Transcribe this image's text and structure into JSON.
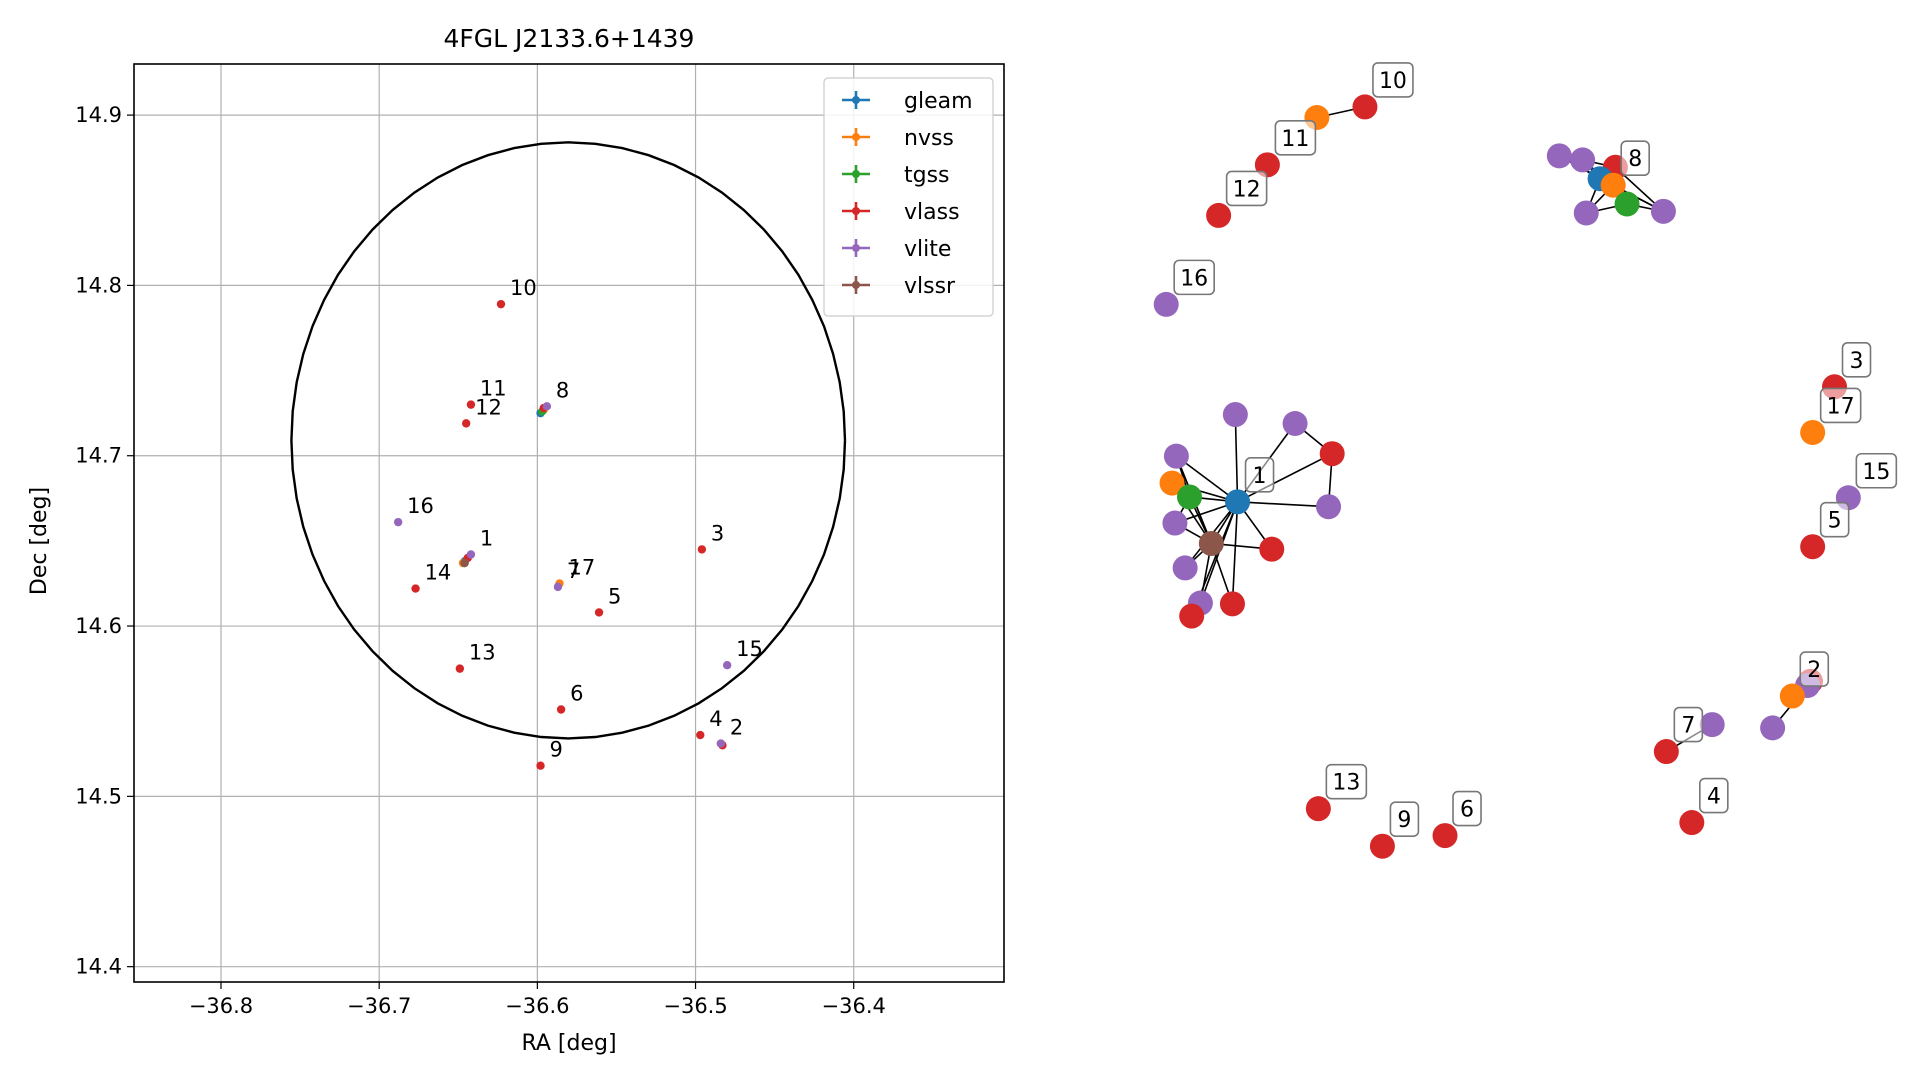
{
  "chart_data": [
    {
      "type": "scatter",
      "title": "4FGL J2133.6+1439",
      "xlabel": "RA [deg]",
      "ylabel": "Dec [deg]",
      "xlim": [
        -36.855,
        -36.305
      ],
      "ylim": [
        14.391,
        14.93
      ],
      "xticks": [
        -36.8,
        -36.7,
        -36.6,
        -36.5,
        -36.4
      ],
      "xtick_labels": [
        "−36.8",
        "−36.7",
        "−36.6",
        "−36.5",
        "−36.4"
      ],
      "yticks": [
        14.4,
        14.5,
        14.6,
        14.7,
        14.8,
        14.9
      ],
      "ytick_labels": [
        "14.4",
        "14.5",
        "14.6",
        "14.7",
        "14.8",
        "14.9"
      ],
      "grid": true,
      "legend_position": "upper right",
      "circle": {
        "center": [
          -36.5805,
          14.709
        ],
        "radius": 0.175
      },
      "series": [
        {
          "name": "gleam",
          "color": "#1f77b4",
          "points": [
            {
              "x": -36.646,
              "y": 14.638
            },
            {
              "x": -36.598,
              "y": 14.725
            }
          ]
        },
        {
          "name": "nvss",
          "color": "#ff7f0e",
          "points": [
            {
              "x": -36.647,
              "y": 14.637
            },
            {
              "x": -36.596,
              "y": 14.727
            },
            {
              "x": -36.484,
              "y": 14.531
            },
            {
              "x": -36.586,
              "y": 14.625
            }
          ]
        },
        {
          "name": "tgss",
          "color": "#2ca02c",
          "points": [
            {
              "x": -36.646,
              "y": 14.637
            },
            {
              "x": -36.597,
              "y": 14.726
            }
          ]
        },
        {
          "name": "vlass",
          "color": "#d62728",
          "points": [
            {
              "x": -36.644,
              "y": 14.64
            },
            {
              "x": -36.596,
              "y": 14.728
            },
            {
              "x": -36.496,
              "y": 14.645
            },
            {
              "x": -36.497,
              "y": 14.536
            },
            {
              "x": -36.561,
              "y": 14.608
            },
            {
              "x": -36.585,
              "y": 14.551
            },
            {
              "x": -36.598,
              "y": 14.518
            },
            {
              "x": -36.623,
              "y": 14.789
            },
            {
              "x": -36.642,
              "y": 14.73
            },
            {
              "x": -36.645,
              "y": 14.719
            },
            {
              "x": -36.649,
              "y": 14.575
            },
            {
              "x": -36.677,
              "y": 14.622
            },
            {
              "x": -36.483,
              "y": 14.53
            }
          ]
        },
        {
          "name": "vlite",
          "color": "#9467bd",
          "points": [
            {
              "x": -36.642,
              "y": 14.642
            },
            {
              "x": -36.594,
              "y": 14.729
            },
            {
              "x": -36.484,
              "y": 14.531
            },
            {
              "x": -36.48,
              "y": 14.577
            },
            {
              "x": -36.688,
              "y": 14.661
            },
            {
              "x": -36.587,
              "y": 14.623
            }
          ]
        },
        {
          "name": "vlssr",
          "color": "#8c564b",
          "points": [
            {
              "x": -36.646,
              "y": 14.637
            }
          ]
        }
      ],
      "annotations": [
        {
          "text": "1",
          "x": -36.642,
          "y": 14.642
        },
        {
          "text": "2",
          "x": -36.484,
          "y": 14.531
        },
        {
          "text": "3",
          "x": -36.496,
          "y": 14.645
        },
        {
          "text": "4",
          "x": -36.497,
          "y": 14.536
        },
        {
          "text": "5",
          "x": -36.561,
          "y": 14.608
        },
        {
          "text": "6",
          "x": -36.585,
          "y": 14.551
        },
        {
          "text": "7",
          "x": -36.587,
          "y": 14.623
        },
        {
          "text": "8",
          "x": -36.594,
          "y": 14.729
        },
        {
          "text": "9",
          "x": -36.598,
          "y": 14.518
        },
        {
          "text": "10",
          "x": -36.623,
          "y": 14.789
        },
        {
          "text": "11",
          "x": -36.642,
          "y": 14.73
        },
        {
          "text": "12",
          "x": -36.645,
          "y": 14.719
        },
        {
          "text": "13",
          "x": -36.649,
          "y": 14.575
        },
        {
          "text": "14",
          "x": -36.677,
          "y": 14.622
        },
        {
          "text": "15",
          "x": -36.48,
          "y": 14.577
        },
        {
          "text": "16",
          "x": -36.688,
          "y": 14.661
        },
        {
          "text": "17",
          "x": -36.586,
          "y": 14.625
        }
      ]
    },
    {
      "type": "network",
      "axes": "off",
      "nodes": [
        {
          "id": "a1",
          "color": "#9467bd",
          "x": 0.12,
          "y": 0.617
        },
        {
          "id": "a2",
          "color": "#9467bd",
          "x": 0.202,
          "y": 0.606
        },
        {
          "id": "a3",
          "color": "#d62728",
          "x": 0.253,
          "y": 0.569
        },
        {
          "id": "a4",
          "color": "#9467bd",
          "x": 0.039,
          "y": 0.566
        },
        {
          "id": "a5",
          "color": "#ff7f0e",
          "x": 0.033,
          "y": 0.533
        },
        {
          "id": "a6",
          "color": "#2ca02c",
          "x": 0.057,
          "y": 0.516
        },
        {
          "id": "a7",
          "color": "#1f77b4",
          "x": 0.123,
          "y": 0.51,
          "label": "1"
        },
        {
          "id": "a8",
          "color": "#9467bd",
          "x": 0.248,
          "y": 0.504
        },
        {
          "id": "a9",
          "color": "#9467bd",
          "x": 0.037,
          "y": 0.484
        },
        {
          "id": "a10",
          "color": "#8c564b",
          "x": 0.087,
          "y": 0.459
        },
        {
          "id": "a11",
          "color": "#d62728",
          "x": 0.17,
          "y": 0.452
        },
        {
          "id": "a12",
          "color": "#9467bd",
          "x": 0.051,
          "y": 0.429
        },
        {
          "id": "a13",
          "color": "#d62728",
          "x": 0.116,
          "y": 0.385
        },
        {
          "id": "a14",
          "color": "#9467bd",
          "x": 0.072,
          "y": 0.386
        },
        {
          "id": "a15",
          "color": "#d62728",
          "x": 0.06,
          "y": 0.37
        },
        {
          "id": "b1",
          "color": "#9467bd",
          "x": 0.565,
          "y": 0.934
        },
        {
          "id": "b2",
          "color": "#9467bd",
          "x": 0.597,
          "y": 0.929
        },
        {
          "id": "b3",
          "color": "#d62728",
          "x": 0.642,
          "y": 0.92
        },
        {
          "id": "b4",
          "color": "#1f77b4",
          "x": 0.621,
          "y": 0.906
        },
        {
          "id": "b5",
          "color": "#ff7f0e",
          "x": 0.639,
          "y": 0.898,
          "label": "8"
        },
        {
          "id": "b6",
          "color": "#2ca02c",
          "x": 0.658,
          "y": 0.875
        },
        {
          "id": "b7",
          "color": "#9467bd",
          "x": 0.602,
          "y": 0.864
        },
        {
          "id": "b8",
          "color": "#9467bd",
          "x": 0.708,
          "y": 0.866
        },
        {
          "id": "c10a",
          "color": "#ff7f0e",
          "x": 0.232,
          "y": 0.981
        },
        {
          "id": "c10b",
          "color": "#d62728",
          "x": 0.298,
          "y": 0.994,
          "label": "10"
        },
        {
          "id": "c11",
          "color": "#d62728",
          "x": 0.164,
          "y": 0.923,
          "label": "11"
        },
        {
          "id": "c12",
          "color": "#d62728",
          "x": 0.097,
          "y": 0.861,
          "label": "12"
        },
        {
          "id": "c16",
          "color": "#9467bd",
          "x": 0.025,
          "y": 0.752,
          "label": "16"
        },
        {
          "id": "c3",
          "color": "#d62728",
          "x": 0.943,
          "y": 0.651,
          "label": "3"
        },
        {
          "id": "c17",
          "color": "#ff7f0e",
          "x": 0.913,
          "y": 0.595,
          "label": "17"
        },
        {
          "id": "c15",
          "color": "#9467bd",
          "x": 0.962,
          "y": 0.515,
          "label": "15"
        },
        {
          "id": "c5",
          "color": "#d62728",
          "x": 0.913,
          "y": 0.455,
          "label": "5"
        },
        {
          "id": "c2a",
          "color": "#d62728",
          "x": 0.91,
          "y": 0.29
        },
        {
          "id": "c2b",
          "color": "#9467bd",
          "x": 0.906,
          "y": 0.285
        },
        {
          "id": "c2c",
          "color": "#ff7f0e",
          "x": 0.885,
          "y": 0.272,
          "label": "2"
        },
        {
          "id": "c2d",
          "color": "#9467bd",
          "x": 0.858,
          "y": 0.233
        },
        {
          "id": "c7a",
          "color": "#9467bd",
          "x": 0.775,
          "y": 0.237
        },
        {
          "id": "c7b",
          "color": "#d62728",
          "x": 0.712,
          "y": 0.204,
          "label": "7"
        },
        {
          "id": "c13",
          "color": "#d62728",
          "x": 0.234,
          "y": 0.134,
          "label": "13"
        },
        {
          "id": "c9",
          "color": "#d62728",
          "x": 0.322,
          "y": 0.088,
          "label": "9"
        },
        {
          "id": "c6",
          "color": "#d62728",
          "x": 0.408,
          "y": 0.101,
          "label": "6"
        },
        {
          "id": "c4",
          "color": "#d62728",
          "x": 0.747,
          "y": 0.117,
          "label": "4"
        }
      ],
      "edges": [
        [
          "a7",
          "a1"
        ],
        [
          "a7",
          "a2"
        ],
        [
          "a7",
          "a3"
        ],
        [
          "a7",
          "a4"
        ],
        [
          "a7",
          "a5"
        ],
        [
          "a7",
          "a6"
        ],
        [
          "a7",
          "a8"
        ],
        [
          "a7",
          "a9"
        ],
        [
          "a7",
          "a10"
        ],
        [
          "a7",
          "a11"
        ],
        [
          "a7",
          "a12"
        ],
        [
          "a7",
          "a13"
        ],
        [
          "a7",
          "a14"
        ],
        [
          "a7",
          "a15"
        ],
        [
          "a2",
          "a3"
        ],
        [
          "a3",
          "a8"
        ],
        [
          "a4",
          "a6"
        ],
        [
          "a4",
          "a10"
        ],
        [
          "a5",
          "a6"
        ],
        [
          "a6",
          "a10"
        ],
        [
          "a9",
          "a10"
        ],
        [
          "a10",
          "a12"
        ],
        [
          "a10",
          "a14"
        ],
        [
          "a10",
          "a13"
        ],
        [
          "a10",
          "a11"
        ],
        [
          "a4",
          "a10"
        ],
        [
          "a6",
          "a9"
        ],
        [
          "a5",
          "a10"
        ],
        [
          "b1",
          "b4"
        ],
        [
          "b1",
          "b5"
        ],
        [
          "b2",
          "b4"
        ],
        [
          "b2",
          "b5"
        ],
        [
          "b2",
          "b3"
        ],
        [
          "b3",
          "b4"
        ],
        [
          "b4",
          "b5"
        ],
        [
          "b4",
          "b6"
        ],
        [
          "b4",
          "b7"
        ],
        [
          "b4",
          "b8"
        ],
        [
          "b5",
          "b6"
        ],
        [
          "b5",
          "b7"
        ],
        [
          "b5",
          "b8"
        ],
        [
          "b6",
          "b8"
        ],
        [
          "b7",
          "b6"
        ],
        [
          "b3",
          "b8"
        ],
        [
          "b3",
          "b6"
        ],
        [
          "c10a",
          "c10b"
        ],
        [
          "c2a",
          "c2c"
        ],
        [
          "c2b",
          "c2d"
        ],
        [
          "c7a",
          "c7b"
        ]
      ]
    }
  ]
}
